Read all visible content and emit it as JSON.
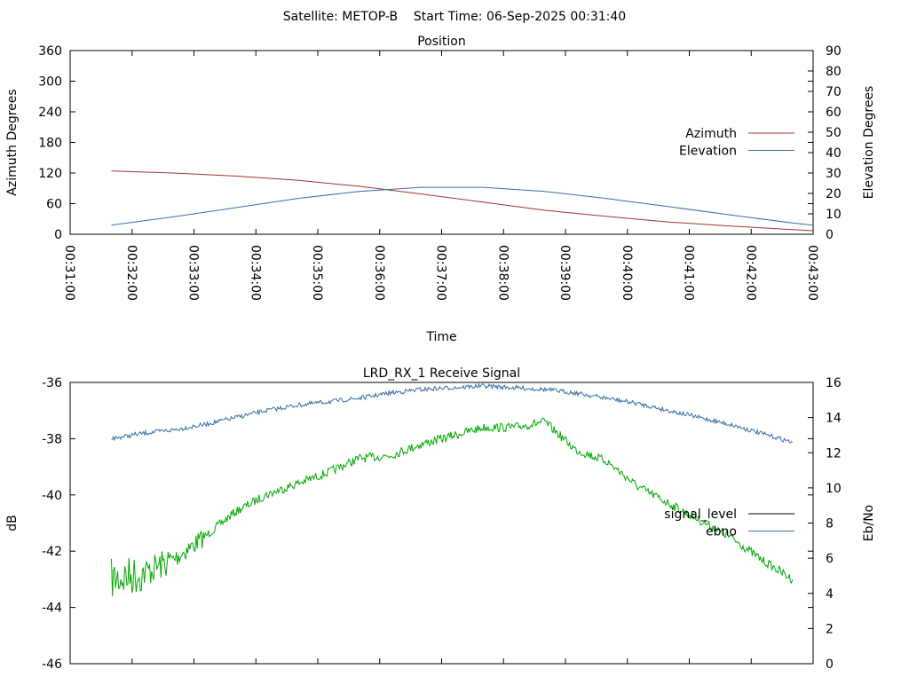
{
  "header": {
    "title": "Satellite: METOP-B    Start Time: 06-Sep-2025 00:31:40"
  },
  "chart_data": [
    {
      "type": "line",
      "title": "Position",
      "xlabel": "Time",
      "ylabel": "Azimuth Degrees",
      "y2label": "Elevation Degrees",
      "xlim": [
        "00:31:00",
        "00:43:00"
      ],
      "ylim": [
        0,
        360
      ],
      "y2lim": [
        0,
        90
      ],
      "x_ticks": [
        "00:31:00",
        "00:32:00",
        "00:33:00",
        "00:34:00",
        "00:35:00",
        "00:36:00",
        "00:37:00",
        "00:38:00",
        "00:39:00",
        "00:40:00",
        "00:41:00",
        "00:42:00",
        "00:43:00"
      ],
      "y_ticks": [
        "0",
        "60",
        "120",
        "180",
        "240",
        "300",
        "360"
      ],
      "y2_ticks": [
        "0",
        "10",
        "20",
        "30",
        "40",
        "50",
        "60",
        "70",
        "80",
        "90"
      ],
      "legend_position": "right",
      "series": [
        {
          "name": "Azimuth",
          "axis": "left",
          "color": "#a83232",
          "x": [
            "00:31:40",
            "00:32:40",
            "00:33:40",
            "00:34:40",
            "00:35:40",
            "00:36:40",
            "00:37:40",
            "00:38:40",
            "00:39:40",
            "00:40:40",
            "00:41:40",
            "00:42:40",
            "00:43:00"
          ],
          "values": [
            124,
            120,
            114,
            106,
            94,
            79,
            63,
            47,
            35,
            24,
            16,
            9,
            7
          ]
        },
        {
          "name": "Elevation",
          "axis": "right",
          "color": "#3a6ea5",
          "x": [
            "00:31:40",
            "00:32:40",
            "00:33:40",
            "00:34:40",
            "00:35:40",
            "00:36:40",
            "00:37:40",
            "00:38:40",
            "00:39:40",
            "00:40:40",
            "00:41:40",
            "00:42:40",
            "00:43:00"
          ],
          "values": [
            4.5,
            8.5,
            13,
            17.5,
            21,
            23,
            23,
            21,
            17.5,
            13.5,
            9.5,
            5.5,
            4.5
          ]
        }
      ]
    },
    {
      "type": "line",
      "title": "LRD_RX_1 Receive Signal",
      "xlabel": "",
      "ylabel": "dB",
      "y2label": "Eb/No",
      "xlim": [
        "00:31:00",
        "00:43:00"
      ],
      "ylim": [
        -46,
        -36
      ],
      "y2lim": [
        0,
        16
      ],
      "y_ticks": [
        "-36",
        "-38",
        "-40",
        "-42",
        "-44",
        "-46"
      ],
      "y2_ticks": [
        "0",
        "2",
        "4",
        "6",
        "8",
        "10",
        "12",
        "14",
        "16"
      ],
      "legend_position": "right",
      "series": [
        {
          "name": "signal_level",
          "axis": "left",
          "color": "#00aa00",
          "legend_color": "#000000",
          "x": [
            "00:31:40",
            "00:32:10",
            "00:32:40",
            "00:33:10",
            "00:33:40",
            "00:34:10",
            "00:34:40",
            "00:35:10",
            "00:35:40",
            "00:36:10",
            "00:36:40",
            "00:37:10",
            "00:37:40",
            "00:38:10",
            "00:38:40",
            "00:39:10",
            "00:39:40",
            "00:40:10",
            "00:40:40",
            "00:41:10",
            "00:41:40",
            "00:42:10",
            "00:42:40"
          ],
          "values": [
            -43.0,
            -42.8,
            -42.3,
            -41.5,
            -40.6,
            -40.0,
            -39.6,
            -39.2,
            -38.7,
            -38.6,
            -38.2,
            -37.9,
            -37.6,
            -37.6,
            -37.4,
            -38.4,
            -38.8,
            -39.7,
            -40.3,
            -40.9,
            -41.5,
            -42.3,
            -43.0
          ]
        },
        {
          "name": "ebno",
          "axis": "right",
          "color": "#3a6ea5",
          "x": [
            "00:31:40",
            "00:32:10",
            "00:32:40",
            "00:33:10",
            "00:33:40",
            "00:34:10",
            "00:34:40",
            "00:35:10",
            "00:35:40",
            "00:36:10",
            "00:36:40",
            "00:37:10",
            "00:37:40",
            "00:38:10",
            "00:38:40",
            "00:39:10",
            "00:39:40",
            "00:40:10",
            "00:40:40",
            "00:41:10",
            "00:41:40",
            "00:42:10",
            "00:42:40"
          ],
          "values": [
            12.8,
            13.1,
            13.3,
            13.6,
            14.0,
            14.4,
            14.7,
            14.9,
            15.1,
            15.4,
            15.6,
            15.7,
            15.8,
            15.7,
            15.6,
            15.4,
            15.1,
            14.8,
            14.4,
            14.0,
            13.6,
            13.1,
            12.6
          ]
        }
      ]
    }
  ]
}
